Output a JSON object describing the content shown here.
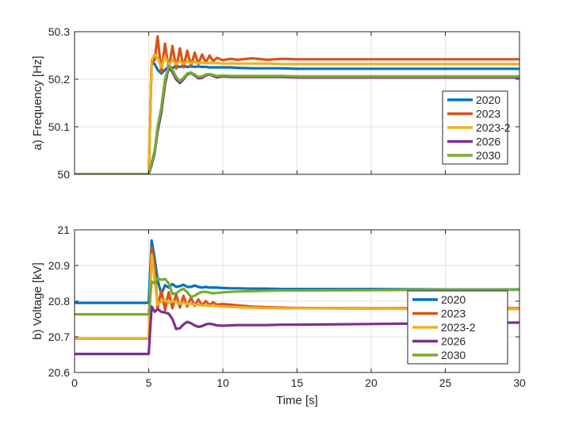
{
  "chart_data": [
    {
      "type": "line",
      "ylabel": "a) Frequency [Hz]",
      "xlabel": "",
      "xlim": [
        0,
        30
      ],
      "ylim": [
        50,
        50.3
      ],
      "xticks": [
        0,
        5,
        10,
        15,
        20,
        25,
        30
      ],
      "xtick_labels_shown": false,
      "yticks": [
        50,
        50.1,
        50.2,
        50.3
      ],
      "ytick_labels": [
        "50",
        "50.1",
        "50.2",
        "50.3"
      ],
      "grid": true,
      "legend_position": "right",
      "x": [
        0,
        4.9,
        5.0,
        5.2,
        5.4,
        5.6,
        5.85,
        6.1,
        6.35,
        6.6,
        6.85,
        7.1,
        7.35,
        7.6,
        7.85,
        8.1,
        8.35,
        8.6,
        8.85,
        9.1,
        9.35,
        9.6,
        10,
        10.5,
        11,
        12,
        13,
        14,
        15,
        20,
        25,
        30
      ],
      "series": [
        {
          "name": "2020",
          "color": "#0072BD",
          "values": [
            50,
            50,
            50,
            50.235,
            50.232,
            50.22,
            50.212,
            50.22,
            50.226,
            50.224,
            50.227,
            50.226,
            50.228,
            50.226,
            50.227,
            50.226,
            50.227,
            50.226,
            50.226,
            50.225,
            50.225,
            50.225,
            50.225,
            50.225,
            50.224,
            50.223,
            50.223,
            50.223,
            50.222,
            50.222,
            50.222,
            50.222
          ]
        },
        {
          "name": "2023",
          "color": "#D95319",
          "values": [
            50,
            50,
            50,
            50.235,
            50.24,
            50.29,
            50.215,
            50.275,
            50.22,
            50.27,
            50.222,
            50.265,
            50.225,
            50.26,
            50.228,
            50.256,
            50.232,
            50.252,
            50.235,
            50.25,
            50.238,
            50.245,
            50.24,
            50.243,
            50.241,
            50.244,
            50.241,
            50.243,
            50.242,
            50.242,
            50.242,
            50.242
          ]
        },
        {
          "name": "2023-2",
          "color": "#EDB120",
          "values": [
            50,
            50,
            50,
            50.24,
            50.252,
            50.245,
            50.225,
            50.248,
            50.23,
            50.24,
            50.232,
            50.238,
            50.233,
            50.237,
            50.234,
            50.236,
            50.234,
            50.235,
            50.234,
            50.234,
            50.234,
            50.234,
            50.233,
            50.233,
            50.233,
            50.233,
            50.233,
            50.232,
            50.232,
            50.232,
            50.232,
            50.232
          ]
        },
        {
          "name": "2026",
          "color": "#7E2F8E",
          "values": [
            50,
            50,
            50,
            50.02,
            50.045,
            50.09,
            50.13,
            50.19,
            50.225,
            50.215,
            50.2,
            50.192,
            50.2,
            50.21,
            50.213,
            50.208,
            50.202,
            50.203,
            50.208,
            50.21,
            50.207,
            50.204,
            50.206,
            50.205,
            50.205,
            50.205,
            50.205,
            50.205,
            50.204,
            50.204,
            50.204,
            50.204
          ]
        },
        {
          "name": "2030",
          "color": "#77AC30",
          "values": [
            50,
            50,
            50,
            50.025,
            50.05,
            50.1,
            50.14,
            50.2,
            50.228,
            50.22,
            50.205,
            50.196,
            50.203,
            50.212,
            50.214,
            50.21,
            50.205,
            50.206,
            50.21,
            50.211,
            50.209,
            50.207,
            50.208,
            50.207,
            50.207,
            50.207,
            50.207,
            50.207,
            50.206,
            50.206,
            50.206,
            50.206
          ]
        }
      ]
    },
    {
      "type": "line",
      "ylabel": "b) Voltage [kV]",
      "xlabel": "Time [s]",
      "xlim": [
        0,
        30
      ],
      "ylim": [
        20.6,
        21
      ],
      "xticks": [
        0,
        5,
        10,
        15,
        20,
        25,
        30
      ],
      "xtick_labels": [
        "0",
        "5",
        "10",
        "15",
        "20",
        "25",
        "30"
      ],
      "yticks": [
        20.6,
        20.7,
        20.8,
        20.9,
        21
      ],
      "ytick_labels": [
        "20.6",
        "20.7",
        "20.8",
        "20.9",
        "21"
      ],
      "grid": true,
      "legend_position": "lower-right",
      "x": [
        0,
        4.9,
        5.0,
        5.2,
        5.4,
        5.6,
        5.85,
        6.1,
        6.35,
        6.6,
        6.85,
        7.1,
        7.35,
        7.6,
        7.85,
        8.1,
        8.35,
        8.6,
        8.85,
        9.1,
        9.35,
        9.6,
        10,
        10.5,
        11,
        12,
        13,
        14,
        15,
        20,
        25,
        30
      ],
      "series": [
        {
          "name": "2020",
          "color": "#0072BD",
          "values": [
            20.795,
            20.795,
            20.795,
            20.97,
            20.92,
            20.86,
            20.82,
            20.845,
            20.838,
            20.848,
            20.84,
            20.842,
            20.846,
            20.84,
            20.84,
            20.844,
            20.84,
            20.838,
            20.84,
            20.838,
            20.838,
            20.838,
            20.837,
            20.836,
            20.836,
            20.835,
            20.835,
            20.834,
            20.834,
            20.834,
            20.833,
            20.833
          ]
        },
        {
          "name": "2023",
          "color": "#D95319",
          "values": [
            20.695,
            20.695,
            20.695,
            20.95,
            20.9,
            20.78,
            20.83,
            20.775,
            20.825,
            20.78,
            20.82,
            20.782,
            20.815,
            20.785,
            20.81,
            20.787,
            20.805,
            20.788,
            20.8,
            20.789,
            20.797,
            20.79,
            20.792,
            20.79,
            20.788,
            20.785,
            20.783,
            20.782,
            20.781,
            20.78,
            20.78,
            20.78
          ]
        },
        {
          "name": "2023-2",
          "color": "#EDB120",
          "values": [
            20.695,
            20.695,
            20.695,
            20.93,
            20.86,
            20.79,
            20.8,
            20.805,
            20.795,
            20.8,
            20.797,
            20.793,
            20.796,
            20.792,
            20.793,
            20.79,
            20.79,
            20.788,
            20.788,
            20.787,
            20.787,
            20.786,
            20.785,
            20.784,
            20.783,
            20.782,
            20.781,
            20.78,
            20.78,
            20.779,
            20.778,
            20.778
          ]
        },
        {
          "name": "2026",
          "color": "#7E2F8E",
          "values": [
            20.652,
            20.652,
            20.652,
            20.785,
            20.77,
            20.778,
            20.77,
            20.768,
            20.765,
            20.75,
            20.722,
            20.724,
            20.735,
            20.742,
            20.738,
            20.732,
            20.728,
            20.73,
            20.735,
            20.737,
            20.735,
            20.732,
            20.731,
            20.732,
            20.733,
            20.733,
            20.733,
            20.734,
            20.734,
            20.736,
            20.738,
            20.74
          ]
        },
        {
          "name": "2030",
          "color": "#77AC30",
          "values": [
            20.763,
            20.763,
            20.763,
            20.855,
            20.85,
            20.865,
            20.86,
            20.862,
            20.85,
            20.82,
            20.822,
            20.83,
            20.835,
            20.825,
            20.812,
            20.815,
            20.822,
            20.826,
            20.826,
            20.824,
            20.822,
            20.823,
            20.825,
            20.826,
            20.827,
            20.828,
            20.829,
            20.83,
            20.83,
            20.831,
            20.832,
            20.832
          ]
        }
      ]
    }
  ]
}
